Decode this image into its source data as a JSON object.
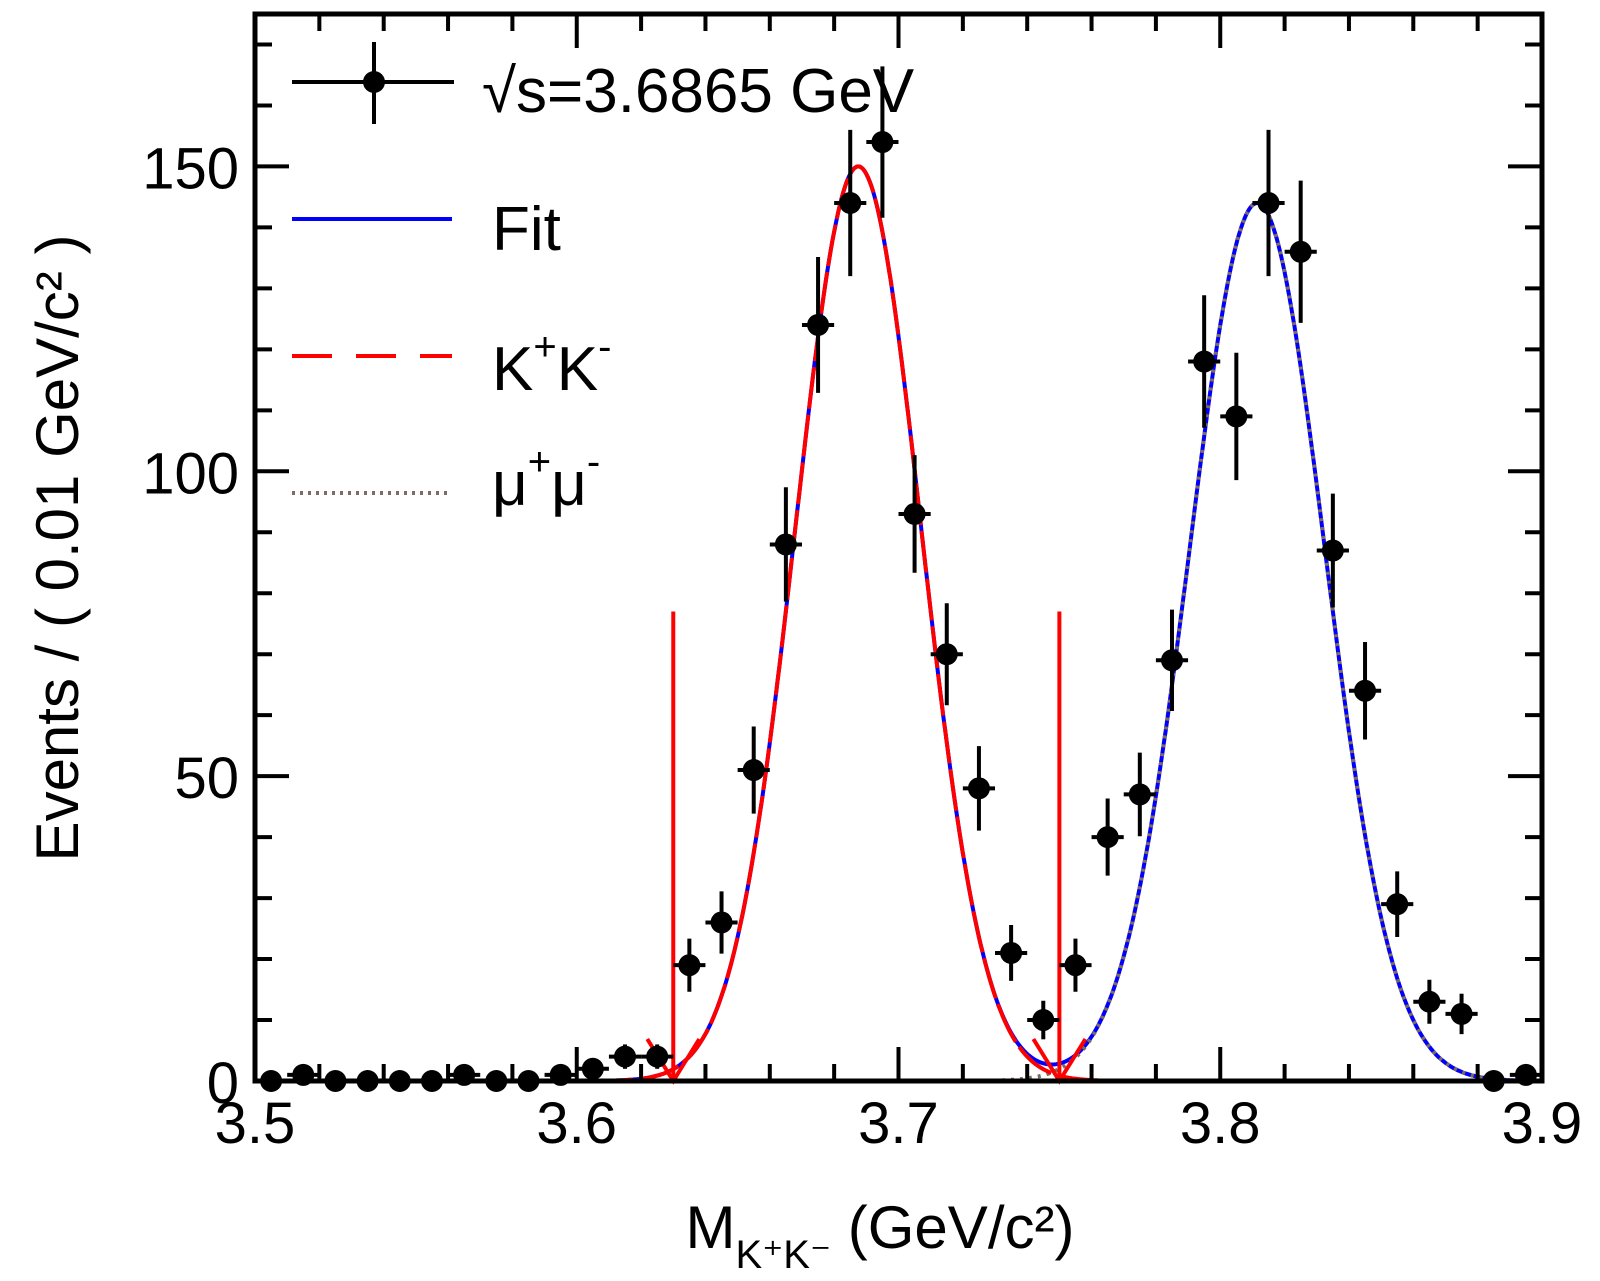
{
  "chart_data": {
    "type": "scatter",
    "title": "",
    "xlabel": {
      "main": "M",
      "sub": "K+K-",
      "unit": " (GeV/c²)"
    },
    "ylabel": "Events / ( 0.01 GeV/c² )",
    "xlim": [
      3.5,
      3.9
    ],
    "ylim": [
      0,
      175
    ],
    "x_ticks": [
      3.5,
      3.6,
      3.7,
      3.8,
      3.9
    ],
    "x_tick_labels": [
      "3.5",
      "3.6",
      "3.7",
      "3.8",
      "3.9"
    ],
    "y_ticks": [
      0,
      50,
      100,
      150
    ],
    "y_tick_labels": [
      "0",
      "50",
      "100",
      "150"
    ],
    "grid": false,
    "legend_position": "top-left",
    "legend": [
      {
        "label": "√s=3.6865 GeV",
        "style": "data-points",
        "color": "#000000"
      },
      {
        "label": "Fit",
        "style": "solid",
        "color": "#0000ff"
      },
      {
        "label": "K⁺K⁻",
        "style": "dashed",
        "color": "#ff0000"
      },
      {
        "label": "μ⁺μ⁻",
        "style": "dotted",
        "color": "#7f6a5f"
      }
    ],
    "legend_text": {
      "data": {
        "sqrt": "√",
        "rest": "s=3.6865 GeV"
      },
      "fit": "Fit",
      "kk": {
        "base1": "K",
        "sup1": "+",
        "base2": "K",
        "sup2": "-"
      },
      "mumu": {
        "base1": "μ",
        "sup1": "+",
        "base2": "μ",
        "sup2": "-"
      }
    },
    "bin_width": 0.01,
    "data_points": {
      "x": [
        3.505,
        3.515,
        3.525,
        3.535,
        3.545,
        3.555,
        3.565,
        3.575,
        3.585,
        3.595,
        3.605,
        3.615,
        3.625,
        3.635,
        3.645,
        3.655,
        3.665,
        3.675,
        3.685,
        3.695,
        3.705,
        3.715,
        3.725,
        3.735,
        3.745,
        3.755,
        3.765,
        3.775,
        3.785,
        3.795,
        3.805,
        3.815,
        3.825,
        3.835,
        3.845,
        3.855,
        3.865,
        3.875,
        3.885,
        3.895
      ],
      "y": [
        0,
        1,
        0,
        0,
        0,
        0,
        1,
        0,
        0,
        1,
        2,
        4,
        4,
        19,
        26,
        51,
        88,
        124,
        144,
        154,
        93,
        70,
        48,
        21,
        10,
        19,
        40,
        47,
        69,
        118,
        109,
        144,
        136,
        87,
        64,
        29,
        13,
        11,
        0,
        1
      ]
    },
    "series": [
      {
        "name": "K+K-",
        "model": "gaussian",
        "mean": 3.6875,
        "sigma": 0.0195,
        "amplitude": 150,
        "color": "#ff0000",
        "style": "dashed"
      },
      {
        "name": "mu+mu-",
        "model": "gaussian",
        "mean": 3.8115,
        "sigma": 0.021,
        "amplitude": 144,
        "color": "#7f6a5f",
        "style": "dotted"
      },
      {
        "name": "Fit",
        "model": "sum",
        "color": "#0000ff",
        "style": "solid"
      }
    ],
    "annotations": [
      {
        "type": "arrow-down",
        "x": 3.63,
        "y_from": 77,
        "y_to": 0,
        "color": "#ff0000"
      },
      {
        "type": "arrow-down",
        "x": 3.75,
        "y_from": 77,
        "y_to": 0,
        "color": "#ff0000"
      }
    ]
  }
}
